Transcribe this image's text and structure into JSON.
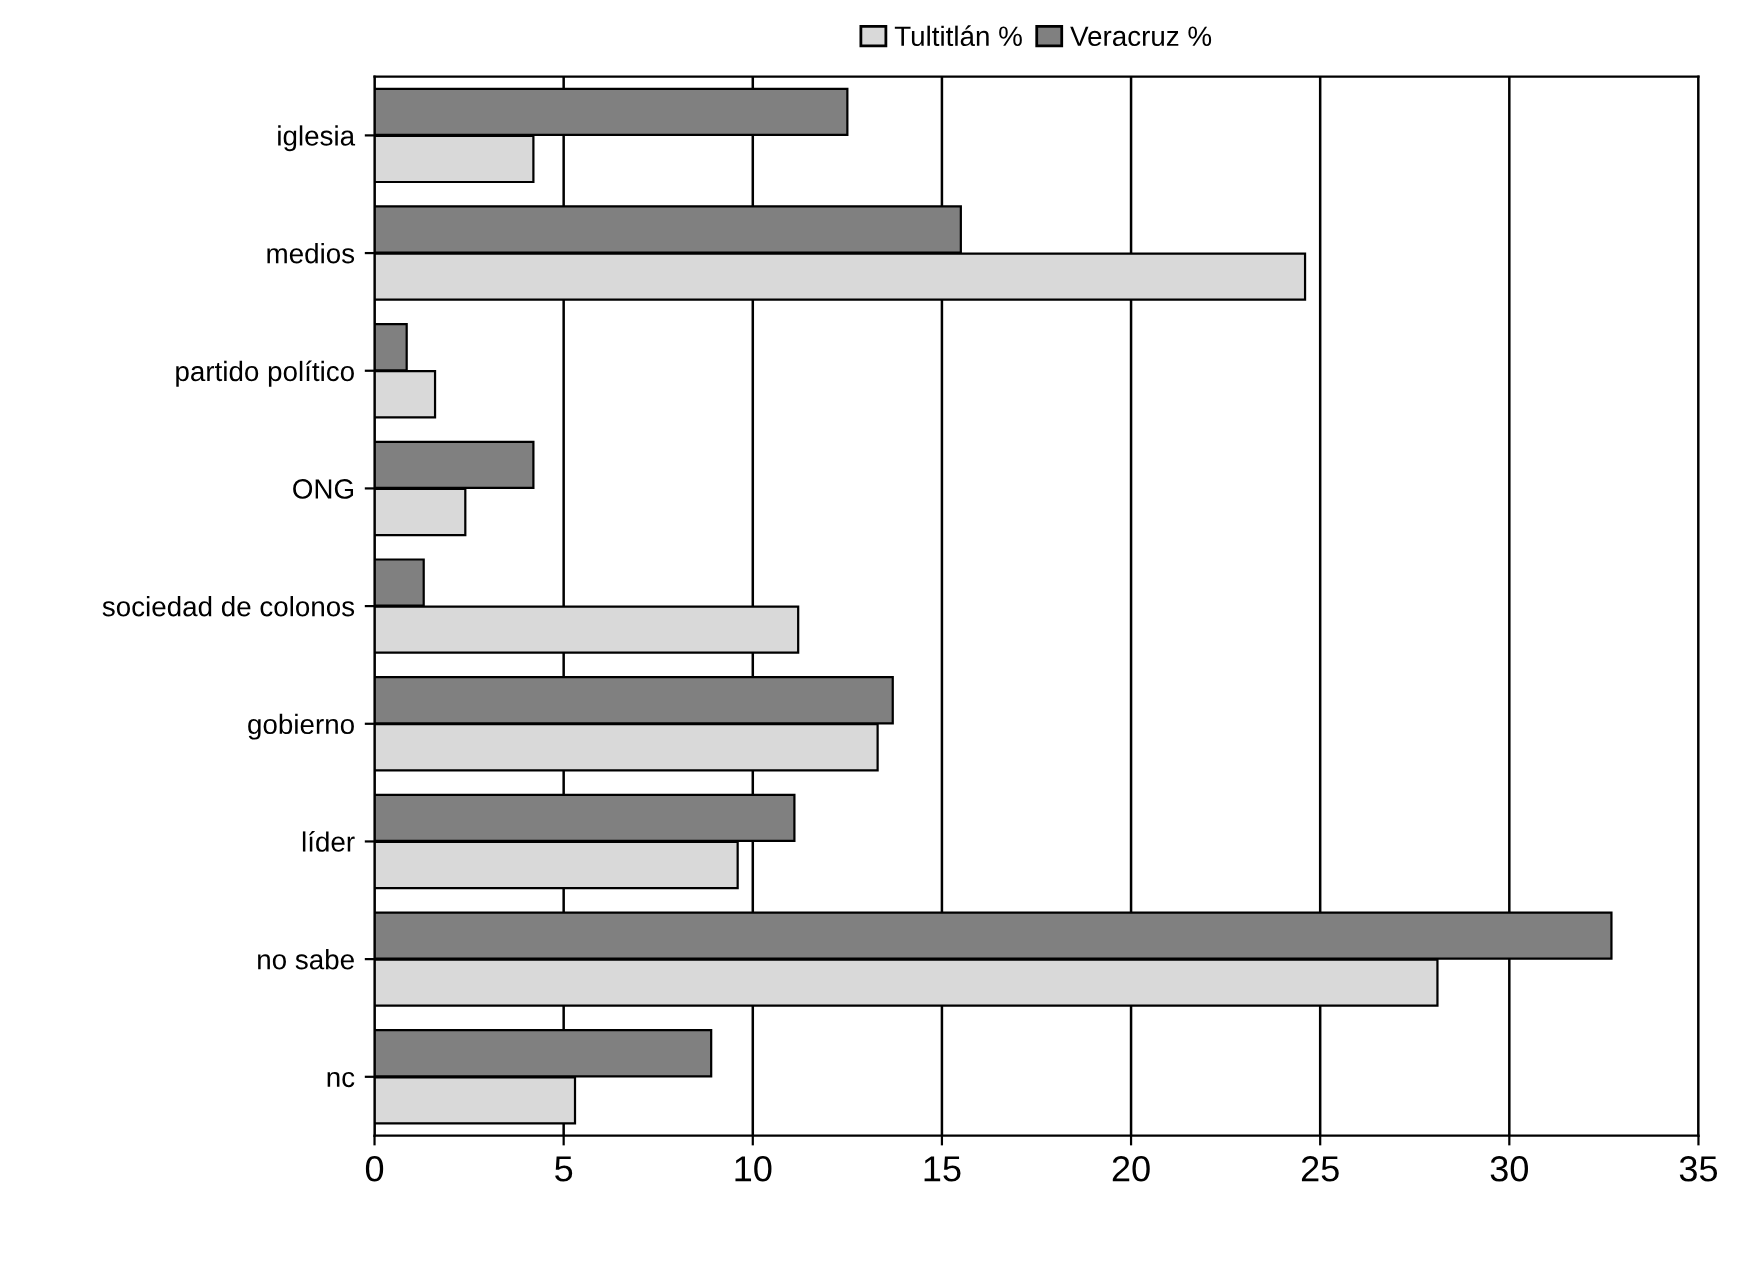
{
  "chart_data": {
    "type": "bar",
    "orientation": "horizontal",
    "categories": [
      "iglesia",
      "medios",
      "partido político",
      "ONG",
      "sociedad de colonos",
      "gobierno",
      "líder",
      "no sabe",
      "nc"
    ],
    "series": [
      {
        "name": "Tultitlán %",
        "color": "#d9d9d9",
        "values": [
          4.2,
          24.6,
          1.6,
          2.4,
          11.2,
          13.3,
          9.6,
          28.1,
          5.3
        ]
      },
      {
        "name": "Veracruz %",
        "color": "#808080",
        "values": [
          12.5,
          15.5,
          0.85,
          4.2,
          1.3,
          13.7,
          11.1,
          32.7,
          8.9
        ]
      }
    ],
    "xlim": [
      0,
      35
    ],
    "xticks": [
      0,
      5,
      10,
      15,
      20,
      25,
      30,
      35
    ],
    "grid": "x",
    "legend": "top"
  }
}
